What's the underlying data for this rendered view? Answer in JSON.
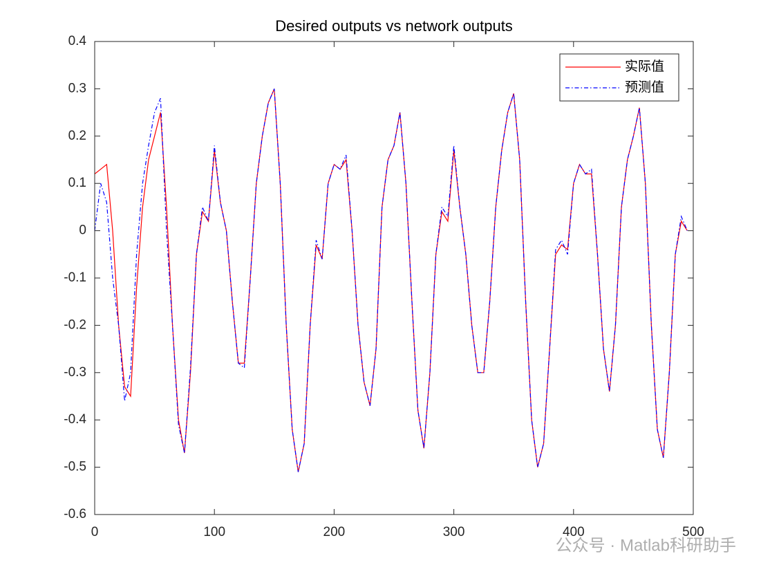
{
  "chart_data": {
    "type": "line",
    "title": "Desired outputs vs network outputs",
    "x": [
      0,
      5,
      10,
      15,
      20,
      25,
      30,
      35,
      40,
      45,
      50,
      55,
      60,
      65,
      70,
      75,
      80,
      85,
      90,
      95,
      100,
      105,
      110,
      115,
      120,
      125,
      130,
      135,
      140,
      145,
      150,
      155,
      160,
      165,
      170,
      175,
      180,
      185,
      190,
      195,
      200,
      205,
      210,
      215,
      220,
      225,
      230,
      235,
      240,
      245,
      250,
      255,
      260,
      265,
      270,
      275,
      280,
      285,
      290,
      295,
      300,
      305,
      310,
      315,
      320,
      325,
      330,
      335,
      340,
      345,
      350,
      355,
      360,
      365,
      370,
      375,
      380,
      385,
      390,
      395,
      400,
      405,
      410,
      415,
      420,
      425,
      430,
      435,
      440,
      445,
      450,
      455,
      460,
      465,
      470,
      475,
      480,
      485,
      490,
      495
    ],
    "series": [
      {
        "name": "实际值",
        "color": "#ff0000",
        "dash": "none",
        "values": [
          0.12,
          0.13,
          0.14,
          0.0,
          -0.2,
          -0.33,
          -0.35,
          -0.12,
          0.05,
          0.15,
          0.2,
          0.25,
          0.05,
          -0.2,
          -0.4,
          -0.47,
          -0.3,
          -0.05,
          0.04,
          0.02,
          0.17,
          0.06,
          0.0,
          -0.15,
          -0.28,
          -0.28,
          -0.1,
          0.1,
          0.2,
          0.27,
          0.3,
          0.1,
          -0.2,
          -0.42,
          -0.51,
          -0.45,
          -0.2,
          -0.03,
          -0.06,
          0.1,
          0.14,
          0.13,
          0.15,
          0.0,
          -0.2,
          -0.32,
          -0.37,
          -0.25,
          0.05,
          0.15,
          0.18,
          0.25,
          0.1,
          -0.15,
          -0.38,
          -0.46,
          -0.3,
          -0.05,
          0.04,
          0.02,
          0.17,
          0.05,
          -0.05,
          -0.2,
          -0.3,
          -0.3,
          -0.15,
          0.05,
          0.17,
          0.25,
          0.29,
          0.15,
          -0.15,
          -0.4,
          -0.5,
          -0.45,
          -0.25,
          -0.05,
          -0.03,
          -0.04,
          0.1,
          0.14,
          0.12,
          0.12,
          -0.05,
          -0.25,
          -0.34,
          -0.2,
          0.05,
          0.15,
          0.2,
          0.26,
          0.1,
          -0.2,
          -0.42,
          -0.48,
          -0.3,
          -0.05,
          0.02,
          0.0
        ]
      },
      {
        "name": "预测值",
        "color": "#0000ff",
        "dash": "6,3,1.5,3",
        "values": [
          0.0,
          0.1,
          0.06,
          -0.1,
          -0.2,
          -0.36,
          -0.3,
          -0.05,
          0.1,
          0.18,
          0.25,
          0.28,
          0.0,
          -0.2,
          -0.41,
          -0.47,
          -0.29,
          -0.05,
          0.05,
          0.02,
          0.18,
          0.06,
          0.0,
          -0.15,
          -0.28,
          -0.29,
          -0.1,
          0.1,
          0.2,
          0.27,
          0.3,
          0.1,
          -0.2,
          -0.42,
          -0.51,
          -0.45,
          -0.2,
          -0.02,
          -0.06,
          0.1,
          0.14,
          0.13,
          0.16,
          0.0,
          -0.2,
          -0.32,
          -0.37,
          -0.25,
          0.05,
          0.15,
          0.18,
          0.25,
          0.1,
          -0.15,
          -0.38,
          -0.46,
          -0.3,
          -0.05,
          0.05,
          0.03,
          0.18,
          0.05,
          -0.05,
          -0.2,
          -0.3,
          -0.3,
          -0.15,
          0.05,
          0.17,
          0.25,
          0.29,
          0.15,
          -0.15,
          -0.4,
          -0.5,
          -0.45,
          -0.25,
          -0.04,
          -0.02,
          -0.05,
          0.1,
          0.14,
          0.12,
          0.13,
          -0.05,
          -0.25,
          -0.34,
          -0.2,
          0.05,
          0.15,
          0.2,
          0.26,
          0.1,
          -0.2,
          -0.42,
          -0.48,
          -0.3,
          -0.05,
          0.03,
          0.0
        ]
      }
    ],
    "xlim": [
      0,
      500
    ],
    "xticks": [
      0,
      100,
      200,
      300,
      400,
      500
    ],
    "ylim": [
      -0.6,
      0.4
    ],
    "yticks": [
      -0.6,
      -0.5,
      -0.4,
      -0.3,
      -0.2,
      -0.1,
      0,
      0.1,
      0.2,
      0.3,
      0.4
    ],
    "grid": false,
    "legend": "northeast",
    "watermark": "公众号 · Matlab科研助手"
  }
}
